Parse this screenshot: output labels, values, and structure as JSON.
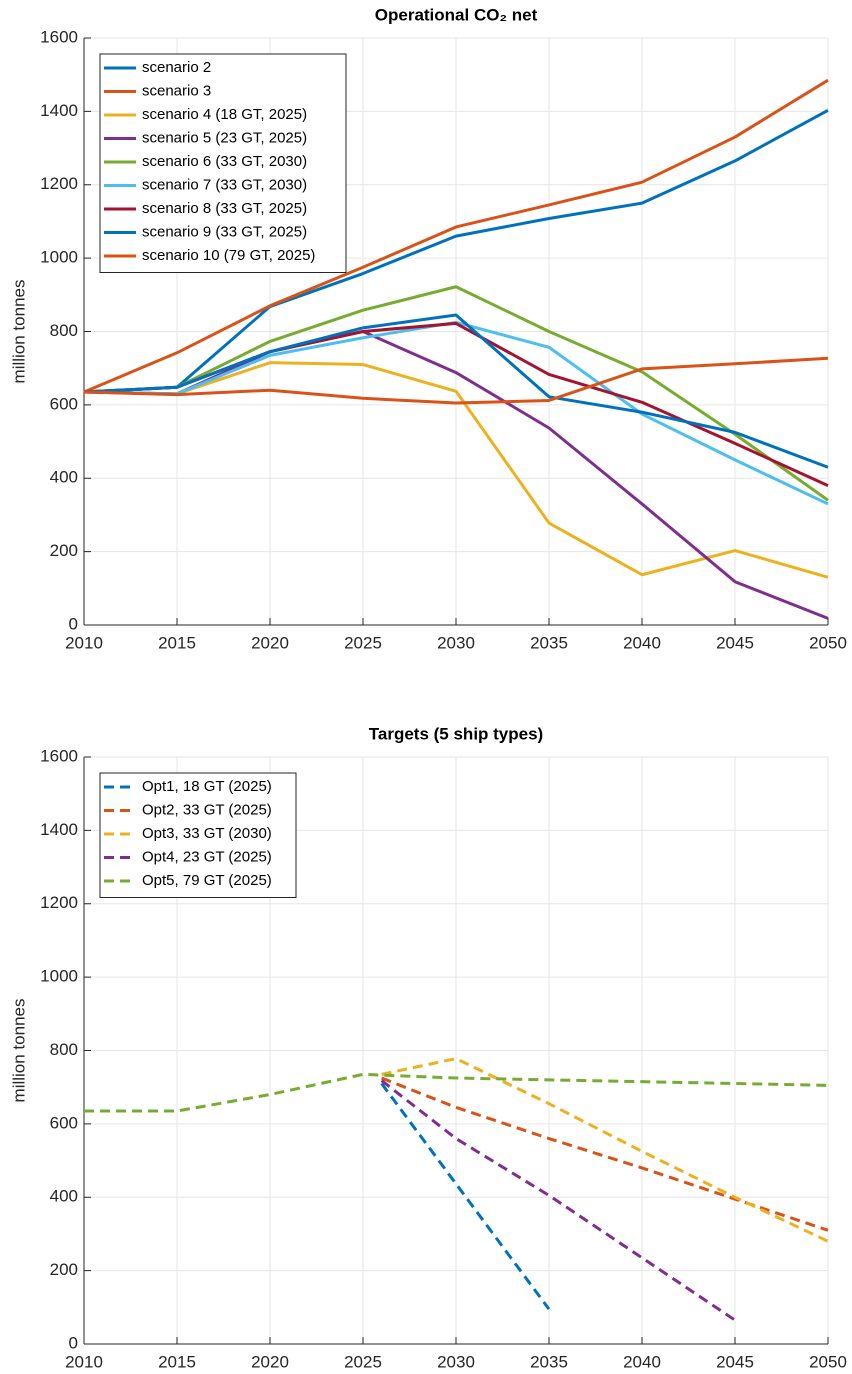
{
  "chart_data": [
    {
      "type": "line",
      "title": "Operational CO₂ net",
      "ylabel": "million tonnes",
      "x": [
        2010,
        2015,
        2020,
        2025,
        2030,
        2035,
        2040,
        2045,
        2050
      ],
      "xlim": [
        2010,
        2050
      ],
      "xticks": [
        2010,
        2015,
        2020,
        2025,
        2030,
        2035,
        2040,
        2045,
        2050
      ],
      "ylim": [
        0,
        1600
      ],
      "yticks": [
        0,
        200,
        400,
        600,
        800,
        1000,
        1200,
        1400,
        1600
      ],
      "grid": true,
      "legend": "upper left",
      "dashed": false,
      "series": [
        {
          "name": "scenario 2",
          "color": "#0072BD",
          "values": [
            635,
            648,
            868,
            958,
            1060,
            1108,
            1150,
            1265,
            1403
          ]
        },
        {
          "name": "scenario 3",
          "color": "#D95319",
          "values": [
            635,
            742,
            870,
            975,
            1085,
            1145,
            1207,
            1330,
            1485
          ]
        },
        {
          "name": "scenario 4 (18 GT, 2025)",
          "color": "#EDB120",
          "values": [
            635,
            630,
            715,
            710,
            637,
            278,
            137,
            203,
            130
          ]
        },
        {
          "name": "scenario 5 (23 GT, 2025)",
          "color": "#7E2F8E",
          "values": [
            635,
            630,
            745,
            800,
            688,
            537,
            330,
            118,
            18
          ]
        },
        {
          "name": "scenario 6 (33 GT, 2030)",
          "color": "#77AC30",
          "values": [
            635,
            648,
            773,
            858,
            922,
            800,
            690,
            520,
            340
          ]
        },
        {
          "name": "scenario 7 (33 GT, 2030)",
          "color": "#4DBEEE",
          "values": [
            635,
            630,
            735,
            783,
            825,
            757,
            575,
            450,
            330
          ]
        },
        {
          "name": "scenario 8 (33 GT, 2025)",
          "color": "#A2142F",
          "values": [
            635,
            648,
            745,
            800,
            822,
            683,
            607,
            495,
            380
          ]
        },
        {
          "name": "scenario 9 (33 GT, 2025)",
          "color": "#0072BD",
          "values": [
            635,
            648,
            745,
            810,
            845,
            622,
            580,
            525,
            430
          ]
        },
        {
          "name": "scenario 10 (79 GT, 2025)",
          "color": "#D95319",
          "values": [
            635,
            628,
            640,
            618,
            605,
            612,
            698,
            712,
            727
          ]
        }
      ]
    },
    {
      "type": "line",
      "title": "Targets (5 ship types)",
      "ylabel": "million tonnes",
      "xlim": [
        2010,
        2050
      ],
      "xticks": [
        2010,
        2015,
        2020,
        2025,
        2030,
        2035,
        2040,
        2045,
        2050
      ],
      "ylim": [
        0,
        1600
      ],
      "yticks": [
        0,
        200,
        400,
        600,
        800,
        1000,
        1200,
        1400,
        1600
      ],
      "grid": true,
      "legend": "upper left",
      "dashed": true,
      "series": [
        {
          "name": "Opt1, 18 GT (2025)",
          "color": "#0072BD",
          "x": [
            2026,
            2035
          ],
          "values": [
            710,
            95
          ]
        },
        {
          "name": "Opt2, 33 GT (2025)",
          "color": "#D95319",
          "x": [
            2026,
            2030,
            2035,
            2040,
            2045,
            2050
          ],
          "values": [
            725,
            645,
            560,
            480,
            395,
            310
          ]
        },
        {
          "name": "Opt3, 33 GT (2030)",
          "color": "#EDB120",
          "x": [
            2026,
            2030,
            2035,
            2040,
            2045,
            2050
          ],
          "values": [
            735,
            778,
            655,
            525,
            400,
            280
          ]
        },
        {
          "name": "Opt4, 23 GT (2025)",
          "color": "#7E2F8E",
          "x": [
            2026,
            2030,
            2035,
            2040,
            2045
          ],
          "values": [
            718,
            560,
            405,
            235,
            65
          ]
        },
        {
          "name": "Opt5, 79 GT (2025)",
          "color": "#77AC30",
          "x": [
            2010,
            2015,
            2020,
            2025,
            2030,
            2035,
            2040,
            2045,
            2050
          ],
          "values": [
            635,
            635,
            680,
            735,
            725,
            720,
            715,
            710,
            705
          ]
        }
      ]
    }
  ]
}
